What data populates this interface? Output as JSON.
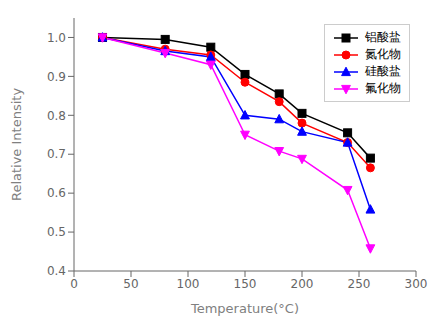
{
  "chart_data": {
    "type": "line",
    "xlabel": "Temperature(°C)",
    "ylabel": "Relative Intensity",
    "x": [
      25,
      80,
      120,
      150,
      180,
      200,
      240,
      260
    ],
    "xlim": [
      0,
      300
    ],
    "xticks": [
      0,
      50,
      100,
      150,
      200,
      250,
      300
    ],
    "ylim": [
      0.4,
      1.05
    ],
    "yticks": [
      0.4,
      0.5,
      0.6,
      0.7,
      0.8,
      0.9,
      {
        "value": 1,
        "label": "1.0"
      }
    ],
    "series": [
      {
        "name": "铝酸盐",
        "color": "#000000",
        "marker": "square",
        "values": [
          1.0,
          0.995,
          0.975,
          0.905,
          0.855,
          0.805,
          0.755,
          0.69
        ]
      },
      {
        "name": "氮化物",
        "color": "#ff0000",
        "marker": "circle",
        "values": [
          1.0,
          0.97,
          0.955,
          0.885,
          0.835,
          0.78,
          0.73,
          0.665
        ]
      },
      {
        "name": "硅酸盐",
        "color": "#0000ff",
        "marker": "triangle-up",
        "values": [
          1.0,
          0.965,
          0.95,
          0.8,
          0.79,
          0.758,
          0.73,
          0.558
        ]
      },
      {
        "name": "氟化物",
        "color": "#ff00ff",
        "marker": "triangle-down",
        "values": [
          1.0,
          0.96,
          0.93,
          0.75,
          0.708,
          0.688,
          0.608,
          0.458
        ]
      }
    ],
    "legend": "upper right",
    "grid": false
  }
}
